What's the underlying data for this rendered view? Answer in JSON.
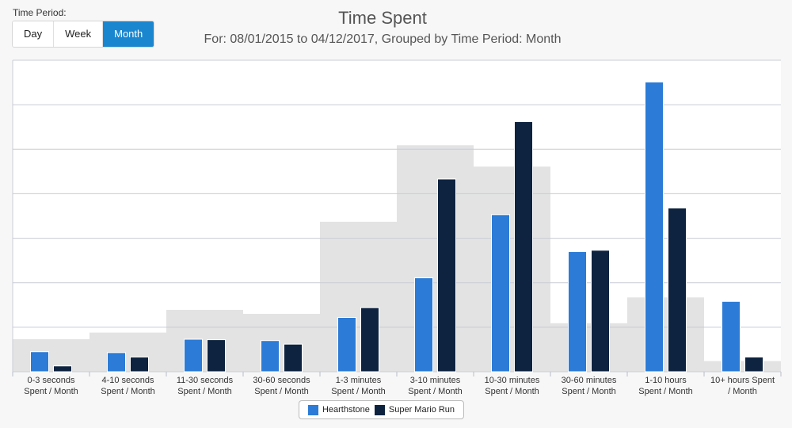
{
  "controls": {
    "period_label": "Time Period:",
    "options": [
      "Day",
      "Week",
      "Month"
    ],
    "selected": "Month"
  },
  "colors": {
    "hearthstone": "#2b7bd7",
    "mario": "#0e2340",
    "background_area": "#e3e3e3",
    "grid": "#c9ccd6"
  },
  "chart_data": {
    "type": "bar",
    "title": "Time Spent",
    "subtitle": "For: 08/01/2015 to 04/12/2017, Grouped by Time Period: Month",
    "categories": [
      [
        "0-3 seconds",
        "Spent / Month"
      ],
      [
        "4-10 seconds",
        "Spent / Month"
      ],
      [
        "11-30 seconds",
        "Spent / Month"
      ],
      [
        "30-60 seconds",
        "Spent / Month"
      ],
      [
        "1-3 minutes",
        "Spent / Month"
      ],
      [
        "3-10 minutes",
        "Spent / Month"
      ],
      [
        "10-30 minutes",
        "Spent / Month"
      ],
      [
        "30-60 minutes",
        "Spent / Month"
      ],
      [
        "1-10 hours",
        "Spent / Month"
      ],
      [
        "10+ hours Spent",
        "/ Month"
      ]
    ],
    "series": [
      {
        "name": "Hearthstone",
        "values": [
          0.45,
          0.43,
          0.73,
          0.7,
          1.22,
          2.11,
          3.53,
          2.7,
          6.51,
          1.58
        ]
      },
      {
        "name": "Super Mario Run",
        "values": [
          0.13,
          0.33,
          0.72,
          0.62,
          1.44,
          4.33,
          5.62,
          2.73,
          3.68,
          0.33
        ]
      }
    ],
    "background_area": [
      0.73,
      0.88,
      1.39,
      1.3,
      3.37,
      5.09,
      4.61,
      1.09,
      1.67,
      0.24
    ],
    "ylim": [
      0,
      7
    ],
    "grid": true,
    "y_tick_labels_visible": false,
    "legend_placement": "bottom-center"
  }
}
